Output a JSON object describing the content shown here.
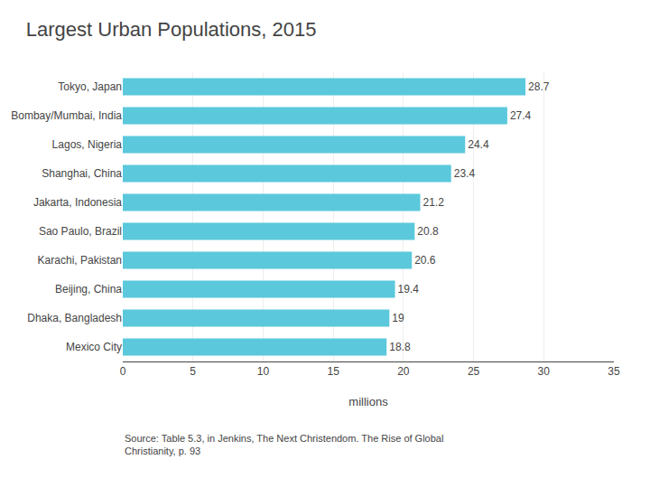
{
  "chart_data": {
    "type": "bar",
    "orientation": "horizontal",
    "title": "Largest Urban Populations, 2015",
    "categories": [
      "Mexico City",
      "Dhaka, Bangladesh",
      "Beijing, China",
      "Karachi, Pakistan",
      "Sao Paulo, Brazil",
      "Jakarta, Indonesia",
      "Shanghai, China",
      "Lagos, Nigeria",
      "Bombay/Mumbai, India",
      "Tokyo, Japan"
    ],
    "values": [
      18.8,
      19.0,
      19.4,
      20.6,
      20.8,
      21.2,
      23.4,
      24.4,
      27.4,
      28.7
    ],
    "color": "#5BC8DC",
    "xlabel": "millions",
    "xlim": [
      0,
      35
    ],
    "xticks": [
      0,
      5,
      10,
      15,
      20,
      25,
      30,
      35
    ],
    "grid": true,
    "data_labels": true,
    "annotations": [
      "Source: Table 5.3, in Jenkins, The Next Christendom. The Rise of Global\nChristianity, p. 93"
    ]
  }
}
